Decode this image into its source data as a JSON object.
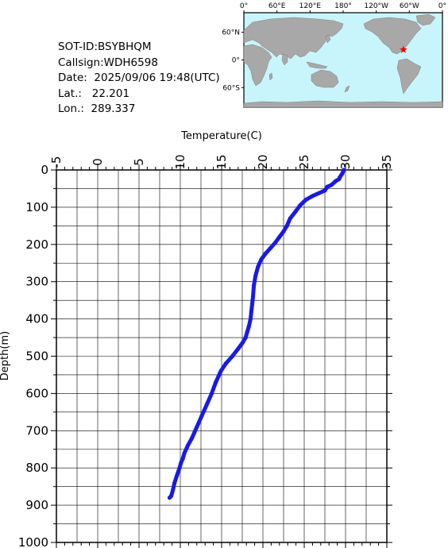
{
  "info": {
    "sot_id": "SOT-ID:BSYBHQM",
    "callsign": "Callsign:WDH6598",
    "date": "Date:  2025/09/06 19:48(UTC)",
    "lat": "Lat.:   22.201",
    "lon": "Lon.:  289.337"
  },
  "map": {
    "lon_labels": [
      "0°",
      "60°E",
      "120°E",
      "180°",
      "120°W",
      "60°W",
      "0°"
    ],
    "lat_labels": [
      "60°N",
      "0°",
      "60°S"
    ],
    "ocean_color": "#c8f5fb",
    "land_color": "#a8a8a8",
    "marker_color": "#ff0000",
    "marker_lat": 22.201,
    "marker_lon": 289.337
  },
  "chart_data": {
    "type": "line",
    "title": "",
    "xlabel": "Temperature(C)",
    "ylabel": "Depth(m)",
    "xlim": [
      -5,
      35
    ],
    "ylim": [
      1000,
      0
    ],
    "x_ticks": [
      -5,
      0,
      5,
      10,
      15,
      20,
      25,
      30,
      35
    ],
    "y_ticks": [
      0,
      100,
      200,
      300,
      400,
      500,
      600,
      700,
      800,
      900,
      1000
    ],
    "grid": true,
    "line_color": "#1a1ae6",
    "series": [
      {
        "x": [
          29.8,
          29.6,
          29.3,
          29.2,
          28.8,
          28.3,
          27.8,
          27.5,
          26.8,
          26.0,
          25.2,
          24.5,
          24.0,
          23.3,
          22.9,
          22.5,
          22.0,
          21.5,
          20.9,
          20.3,
          19.8,
          19.4,
          19.1,
          18.9,
          18.8,
          18.7,
          18.6,
          18.5,
          18.3,
          18.1,
          17.9,
          17.5,
          17.0,
          16.3,
          15.5,
          14.9,
          14.3,
          13.8,
          13.2,
          12.6,
          12.0,
          11.4,
          10.9,
          10.5,
          10.3,
          10.1,
          9.9,
          9.6,
          9.3,
          9.1,
          8.9,
          8.7
        ],
        "y": [
          0,
          10,
          20,
          25,
          30,
          40,
          45,
          55,
          62,
          70,
          80,
          95,
          110,
          130,
          150,
          165,
          180,
          195,
          210,
          225,
          240,
          260,
          285,
          310,
          340,
          360,
          380,
          400,
          420,
          435,
          450,
          465,
          480,
          500,
          520,
          540,
          570,
          600,
          630,
          660,
          690,
          720,
          740,
          760,
          775,
          785,
          800,
          820,
          840,
          860,
          875,
          880
        ]
      }
    ]
  }
}
